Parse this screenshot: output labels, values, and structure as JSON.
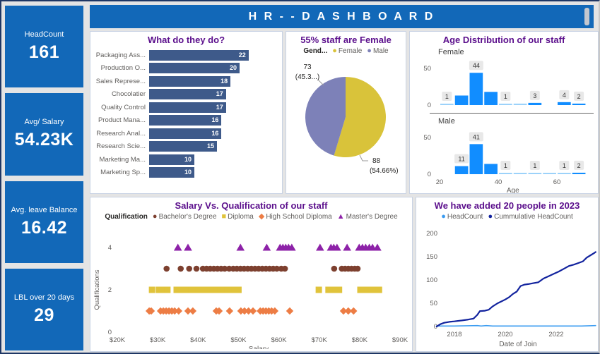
{
  "header": {
    "title": "H R - - D A S H B O A R D"
  },
  "kpis": [
    {
      "label": "HeadCount",
      "value": "161"
    },
    {
      "label": "Avg/ Salary",
      "value": "54.23K"
    },
    {
      "label": "Avg. leave Balance",
      "value": "16.42"
    },
    {
      "label": "LBL over 20 days",
      "value": "29"
    }
  ],
  "colors": {
    "kpi_blue": "#1268B8",
    "header_blue": "#1268B8",
    "title_purple": "#5B0F8C",
    "axis_text": "#605E5C",
    "label_text": "#252423"
  },
  "chart_data": {
    "roles": {
      "type": "bar",
      "title": "What do they do?",
      "categories": [
        "Packaging Ass...",
        "Production O...",
        "Sales Represe...",
        "Chocolatier",
        "Quality Control",
        "Product Mana...",
        "Research Anal...",
        "Research Scie...",
        "Marketing Ma...",
        "Marketing Sp..."
      ],
      "values": [
        22,
        20,
        18,
        17,
        17,
        16,
        16,
        15,
        10,
        10
      ],
      "value_max": 22,
      "bar_color": "#3E5A8A"
    },
    "gender": {
      "type": "pie",
      "title": "55% staff are Female",
      "legend_title": "Gend...",
      "slices": [
        {
          "label": "Female",
          "value": 88,
          "callout_value": "88",
          "callout_pct": "(54.66%)",
          "color": "#D9C33A"
        },
        {
          "label": "Male",
          "value": 73,
          "callout_value": "73",
          "callout_pct": "(45.3...)",
          "color": "#7D81B8"
        }
      ]
    },
    "age": {
      "type": "histogram",
      "title": "Age Distribution of our staff",
      "xlabel": "Age",
      "x_ticks": [
        20,
        40,
        60
      ],
      "y_ticks": [
        0,
        50
      ],
      "bin_start": 20,
      "bin_width": 5,
      "bar_color": "#118DFF",
      "bar_color_light": "#9CD2FA",
      "sections": [
        {
          "name": "Female",
          "values": [
            1,
            13,
            44,
            18,
            1,
            2,
            3,
            0,
            4,
            2
          ],
          "labels": [
            "1",
            "",
            "44",
            "",
            "1",
            "",
            "3",
            "",
            "4",
            "2"
          ]
        },
        {
          "name": "Male",
          "values": [
            0,
            11,
            41,
            14,
            1,
            1,
            1,
            1,
            1,
            2
          ],
          "labels": [
            "",
            "11",
            "41",
            "",
            "1",
            "",
            "1",
            "",
            "1",
            "2"
          ]
        }
      ]
    },
    "salary_qual": {
      "type": "scatter",
      "title": "Salary Vs. Qualification of our staff",
      "legend_title": "Qualification",
      "xlabel": "Salary",
      "ylabel": "Qualifications",
      "x_ticks": [
        "$20K",
        "$30K",
        "$40K",
        "$50K",
        "$60K",
        "$70K",
        "$80K",
        "$90K"
      ],
      "x_tick_values": [
        20,
        30,
        40,
        50,
        60,
        70,
        80,
        90
      ],
      "y_ticks": [
        0,
        2,
        4
      ],
      "series": [
        {
          "name": "Bachelor's Degree",
          "shape": "circle",
          "color": "#7D402F",
          "y": 3,
          "x": [
            32.2,
            35.7,
            37.8,
            39.6,
            41.2,
            42.1,
            43,
            43.9,
            44.8,
            45.7,
            46.6,
            47.7,
            48.7,
            49.6,
            50.5,
            51.4,
            52.3,
            53.2,
            54.1,
            55,
            55.9,
            56.8,
            57.7,
            58.6,
            59.5,
            60.6,
            61.5,
            73.7,
            75.6,
            76.4,
            77.2,
            78,
            78.8,
            79.5
          ]
        },
        {
          "name": "Diploma",
          "shape": "square",
          "color": "#E0C33B",
          "y": 2,
          "x": [
            28.6,
            30.3,
            31.3,
            32.4,
            34.7,
            35.6,
            36.5,
            37.4,
            38.3,
            39.2,
            40.1,
            41,
            41.9,
            42.8,
            43.7,
            44.6,
            45.5,
            46.4,
            47.3,
            48.2,
            49.1,
            50,
            69.9,
            72.3,
            73.2,
            74.1,
            74.9,
            80.2,
            81.1,
            82,
            83,
            84,
            84.8
          ]
        },
        {
          "name": "High School Diploma",
          "shape": "diamond",
          "color": "#ED7D45",
          "y": 1,
          "x": [
            27.9,
            28.4,
            30.7,
            31.4,
            32.1,
            32.8,
            33.5,
            34.2,
            35.2,
            37.5,
            38.7,
            44.5,
            45.2,
            47.8,
            50.6,
            51.5,
            52.5,
            53.6,
            55.4,
            56.1,
            56.8,
            57.5,
            58.2,
            59,
            62.7,
            76,
            77.2,
            78.5
          ]
        },
        {
          "name": "Master's Degree",
          "shape": "triangle",
          "color": "#8D22A8",
          "y": 4,
          "x": [
            35,
            37.5,
            50.5,
            57,
            60.3,
            61,
            61.7,
            62.4,
            63.2,
            70.2,
            72.9,
            73.6,
            74.4,
            76.9,
            79.9,
            80.7,
            81.5,
            82.4,
            83.2,
            84.4
          ]
        }
      ]
    },
    "growth": {
      "type": "line",
      "title": "We have added 20 people in 2023",
      "xlabel": "Date of Join",
      "y_ticks": [
        0,
        50,
        100,
        150,
        200
      ],
      "x_ticks": [
        2018,
        2020,
        2022
      ],
      "series": [
        {
          "name": "HeadCount",
          "color": "#3A9BF0",
          "points": [
            [
              2017.3,
              1
            ],
            [
              2018.0,
              1
            ],
            [
              2018.9,
              2
            ],
            [
              2019.05,
              1
            ],
            [
              2019.25,
              2
            ],
            [
              2019.5,
              1
            ],
            [
              2020.0,
              1
            ],
            [
              2021.0,
              1
            ],
            [
              2022.0,
              1
            ],
            [
              2023.0,
              1
            ],
            [
              2023.55,
              2
            ]
          ]
        },
        {
          "name": "Cummulative HeadCount",
          "color": "#12239E",
          "points": [
            [
              2017.3,
              0
            ],
            [
              2017.45,
              5
            ],
            [
              2017.6,
              8
            ],
            [
              2017.8,
              10
            ],
            [
              2018.0,
              11
            ],
            [
              2018.3,
              13
            ],
            [
              2018.55,
              15
            ],
            [
              2018.75,
              17
            ],
            [
              2018.9,
              25
            ],
            [
              2019.0,
              33
            ],
            [
              2019.2,
              34
            ],
            [
              2019.35,
              36
            ],
            [
              2019.5,
              43
            ],
            [
              2019.7,
              50
            ],
            [
              2019.85,
              54
            ],
            [
              2020.0,
              58
            ],
            [
              2020.15,
              63
            ],
            [
              2020.3,
              70
            ],
            [
              2020.45,
              75
            ],
            [
              2020.6,
              87
            ],
            [
              2020.75,
              90
            ],
            [
              2020.9,
              91
            ],
            [
              2021.1,
              93
            ],
            [
              2021.3,
              95
            ],
            [
              2021.5,
              103
            ],
            [
              2021.7,
              108
            ],
            [
              2021.9,
              113
            ],
            [
              2022.1,
              118
            ],
            [
              2022.3,
              124
            ],
            [
              2022.5,
              130
            ],
            [
              2022.7,
              133
            ],
            [
              2022.9,
              137
            ],
            [
              2023.05,
              140
            ],
            [
              2023.2,
              148
            ],
            [
              2023.35,
              153
            ],
            [
              2023.5,
              158
            ],
            [
              2023.55,
              160
            ]
          ]
        }
      ]
    }
  }
}
